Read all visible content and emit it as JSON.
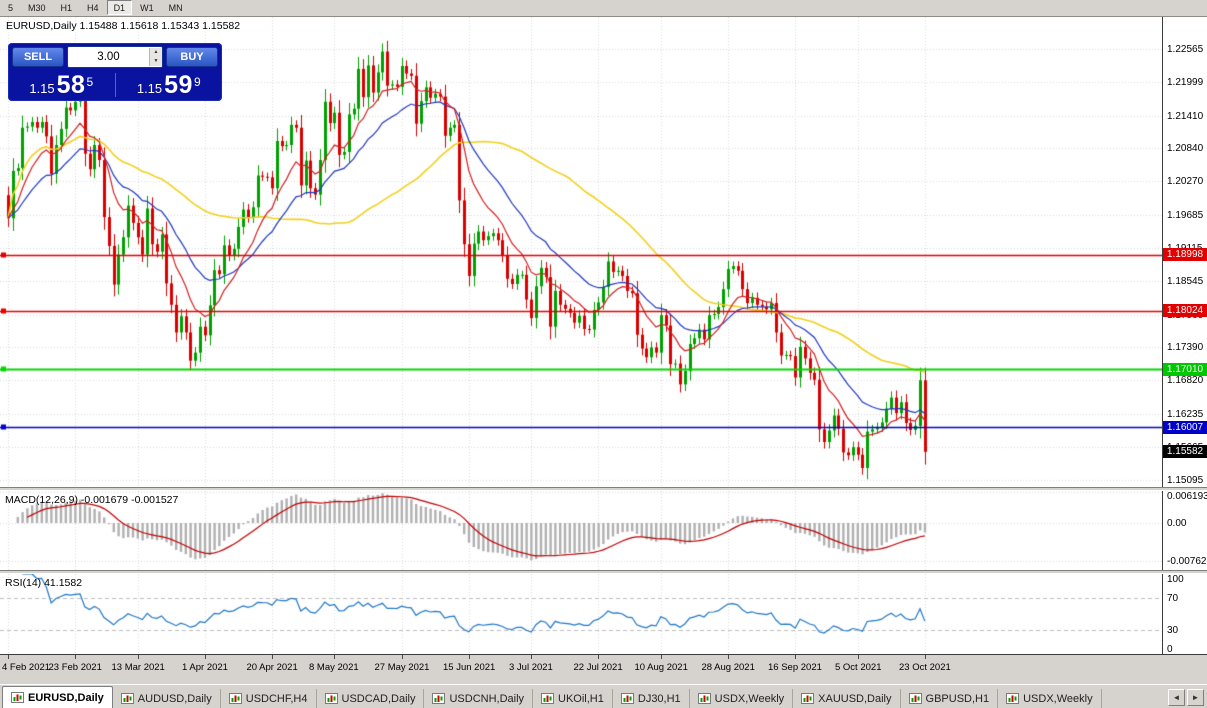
{
  "toolbar": {
    "timeframes": [
      "5",
      "M30",
      "H1",
      "H4",
      "D1",
      "W1",
      "MN"
    ],
    "active": "D1"
  },
  "chart_header": {
    "title": "EURUSD,Daily 1.15488 1.15618 1.15343 1.15582"
  },
  "trade_widget": {
    "sell_label": "SELL",
    "buy_label": "BUY",
    "volume": "3.00",
    "sell_price_prefix": "1.15",
    "sell_price_big": "58",
    "sell_price_sup": "5",
    "buy_price_prefix": "1.15",
    "buy_price_big": "59",
    "buy_price_sup": "9"
  },
  "price_axis": {
    "labels": [
      "1.22565",
      "1.21999",
      "1.21410",
      "1.20840",
      "1.20270",
      "1.19685",
      "1.19115",
      "1.18545",
      "1.17960",
      "1.17390",
      "1.16820",
      "1.16235",
      "1.15665",
      "1.15095"
    ],
    "badges": [
      {
        "text": "1.18998",
        "value": 1.18998,
        "color": "#e00000"
      },
      {
        "text": "1.18024",
        "value": 1.18024,
        "color": "#e00000"
      },
      {
        "text": "1.17010",
        "value": 1.1701,
        "color": "#00c800"
      },
      {
        "text": "1.16007",
        "value": 1.16007,
        "color": "#0000c8"
      },
      {
        "text": "1.15582",
        "value": 1.15582,
        "color": "#000000"
      }
    ]
  },
  "macd_panel": {
    "label": "MACD(12,26,9) -0.001679 -0.001527",
    "fast": 12,
    "slow": 26,
    "signal": 9,
    "histogram_color": "#b0b0b0",
    "signal_color": "#c00000",
    "range": [
      -0.0094,
      0.0064
    ],
    "axis": [
      {
        "text": "0.006193",
        "value": 0.006193
      },
      {
        "text": "0.00",
        "value": 0
      },
      {
        "text": "-0.007621",
        "value": -0.007621
      }
    ]
  },
  "rsi_panel": {
    "label": "RSI(14) 41.1582",
    "period": 14,
    "color": "#1f77c8",
    "levels": [
      70,
      30
    ],
    "axis": [
      {
        "text": "100",
        "value": 100
      },
      {
        "text": "70",
        "value": 70
      },
      {
        "text": "30",
        "value": 30
      },
      {
        "text": "0",
        "value": 0
      }
    ]
  },
  "chart_data": {
    "type": "candlestick",
    "symbol": "EURUSD",
    "timeframe": "Daily",
    "last_ohlc": {
      "open": 1.15488,
      "high": 1.15618,
      "low": 1.15343,
      "close": 1.15582
    },
    "y_range": [
      1.1497,
      1.2312
    ],
    "colors": {
      "up": "#00a000",
      "down": "#d80000"
    },
    "ma": [
      {
        "name": "slow",
        "type": "sma",
        "period": 52,
        "color": "#f2cf1d",
        "width": 1.6
      },
      {
        "name": "medium",
        "type": "ema",
        "period": 22,
        "color": "#2038c0",
        "width": 1.2
      },
      {
        "name": "fast",
        "type": "ema",
        "period": 10,
        "color": "#d02020",
        "width": 1.2
      }
    ],
    "levels": [
      {
        "value": 1.18998,
        "color": "#e00000",
        "width": 1.4
      },
      {
        "value": 1.18024,
        "color": "#e00000",
        "width": 1.4
      },
      {
        "value": 1.1701,
        "color": "#00d800",
        "width": 2
      },
      {
        "value": 1.16007,
        "color": "#0000c8",
        "width": 1.6
      }
    ],
    "dates": [
      "4 Feb 2021",
      "23 Feb 2021",
      "13 Mar 2021",
      "1 Apr 2021",
      "20 Apr 2021",
      "8 May 2021",
      "27 May 2021",
      "15 Jun 2021",
      "3 Jul 2021",
      "22 Jul 2021",
      "10 Aug 2021",
      "28 Aug 2021",
      "16 Sep 2021",
      "5 Oct 2021",
      "23 Oct 2021"
    ],
    "closes": [
      1.1963,
      1.2045,
      1.205,
      1.212,
      1.2122,
      1.213,
      1.212,
      1.213,
      1.2105,
      1.204,
      1.209,
      1.2118,
      1.2155,
      1.215,
      1.2165,
      1.2175,
      1.2075,
      1.2048,
      1.209,
      1.2064,
      1.1965,
      1.1915,
      1.1848,
      1.19,
      1.193,
      1.1985,
      1.1955,
      1.193,
      1.19,
      1.198,
      1.1918,
      1.1905,
      1.1935,
      1.185,
      1.1813,
      1.1765,
      1.1793,
      1.1765,
      1.1716,
      1.173,
      1.1775,
      1.176,
      1.1812,
      1.1873,
      1.1866,
      1.1916,
      1.1899,
      1.191,
      1.1948,
      1.1978,
      1.1965,
      1.1982,
      1.2037,
      1.2035,
      1.2034,
      1.2015,
      1.2097,
      1.2088,
      1.209,
      1.2125,
      1.212,
      1.202,
      1.2063,
      1.2015,
      1.2004,
      1.2064,
      1.2165,
      1.2128,
      1.2146,
      1.2073,
      1.2078,
      1.2143,
      1.2153,
      1.2222,
      1.2173,
      1.2228,
      1.2181,
      1.2216,
      1.2252,
      1.2193,
      1.2195,
      1.2191,
      1.2227,
      1.2214,
      1.221,
      1.2127,
      1.2166,
      1.219,
      1.2172,
      1.2179,
      1.2174,
      1.2106,
      1.212,
      1.2125,
      1.1994,
      1.1918,
      1.1863,
      1.1919,
      1.194,
      1.1925,
      1.1932,
      1.1937,
      1.1925,
      1.1899,
      1.1858,
      1.1849,
      1.1865,
      1.1865,
      1.1822,
      1.179,
      1.1845,
      1.1877,
      1.1861,
      1.1775,
      1.1837,
      1.1813,
      1.1806,
      1.1799,
      1.1782,
      1.1794,
      1.1771,
      1.177,
      1.1804,
      1.1817,
      1.1844,
      1.1888,
      1.187,
      1.1872,
      1.1863,
      1.1837,
      1.1833,
      1.1761,
      1.1737,
      1.1722,
      1.1739,
      1.173,
      1.1795,
      1.1777,
      1.171,
      1.1711,
      1.1675,
      1.1698,
      1.1745,
      1.1755,
      1.177,
      1.1753,
      1.1795,
      1.1797,
      1.1809,
      1.184,
      1.1875,
      1.188,
      1.1872,
      1.184,
      1.1816,
      1.1825,
      1.1813,
      1.181,
      1.1805,
      1.1816,
      1.1765,
      1.1725,
      1.1726,
      1.1724,
      1.1687,
      1.174,
      1.172,
      1.1695,
      1.1683,
      1.1597,
      1.1575,
      1.1595,
      1.1621,
      1.1598,
      1.1557,
      1.1552,
      1.1566,
      1.1553,
      1.153,
      1.1593,
      1.1597,
      1.1601,
      1.1609,
      1.1633,
      1.1652,
      1.1625,
      1.1644,
      1.1608,
      1.1596,
      1.1603,
      1.1682,
      1.1558
    ]
  },
  "tabs": {
    "scroll_left": "◄",
    "scroll_right": "►",
    "items": [
      {
        "label": "EURUSD,Daily",
        "active": true
      },
      {
        "label": "AUDUSD,Daily",
        "active": false
      },
      {
        "label": "USDCHF,H4",
        "active": false
      },
      {
        "label": "USDCAD,Daily",
        "active": false
      },
      {
        "label": "USDCNH,Daily",
        "active": false
      },
      {
        "label": "UKOil,H1",
        "active": false
      },
      {
        "label": "DJ30,H1",
        "active": false
      },
      {
        "label": "USDX,Weekly",
        "active": false
      },
      {
        "label": "XAUUSD,Daily",
        "active": false
      },
      {
        "label": "GBPUSD,H1",
        "active": false
      },
      {
        "label": "USDX,Weekly",
        "active": false
      }
    ]
  }
}
